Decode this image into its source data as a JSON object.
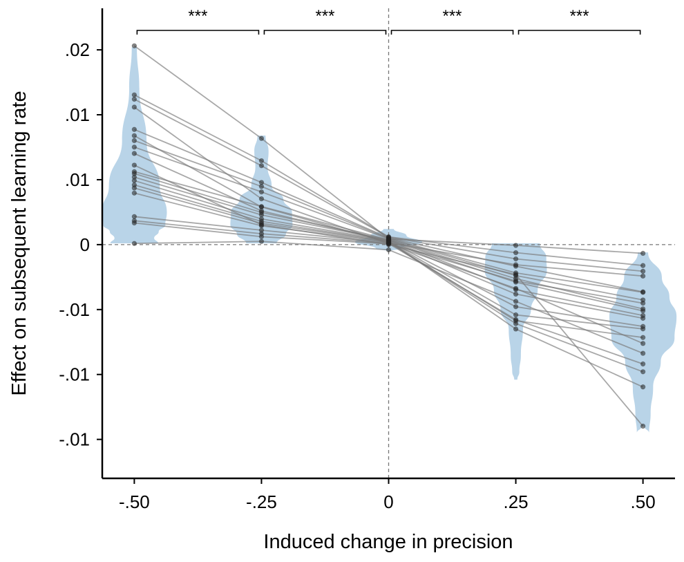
{
  "chart_data": {
    "type": "violin",
    "xlabel": "Induced change in precision",
    "ylabel": "Effect on subsequent learning rate",
    "x_tick_values": [
      -0.5,
      -0.25,
      0,
      0.25,
      0.5
    ],
    "x_tick_labels": [
      "-.50",
      "-.25",
      "0",
      ".25",
      ".50"
    ],
    "y_tick_values": [
      0.015,
      0.01,
      0.005,
      0,
      -0.005,
      -0.01,
      -0.015
    ],
    "y_tick_labels": [
      ".02",
      ".01",
      ".01",
      "0",
      "-.01",
      "-.01",
      "-.01"
    ],
    "xlim": [
      -0.563,
      0.563
    ],
    "ylim": [
      -0.018,
      0.0182
    ],
    "reference_lines": {
      "x": 0,
      "y": 0
    },
    "violin_color": "#b9d4e8",
    "line_color": "#7a7a7a",
    "point_color": "#222222",
    "groups": [
      -0.5,
      -0.25,
      0,
      0.25,
      0.5
    ],
    "violin_widths": [
      [
        [
          0.0152,
          0.005
        ],
        [
          0.012,
          0.01
        ],
        [
          0.008,
          0.024
        ],
        [
          0.0045,
          0.05
        ],
        [
          0.0025,
          0.064
        ],
        [
          0.0015,
          0.061
        ],
        [
          0.001,
          0.048
        ],
        [
          0.0005,
          0.039
        ],
        [
          0.0001,
          0.047
        ]
      ],
      [
        [
          0.0084,
          0.008
        ],
        [
          0.0072,
          0.014
        ],
        [
          0.006,
          0.012
        ],
        [
          0.0045,
          0.02
        ],
        [
          0.0035,
          0.043
        ],
        [
          0.0025,
          0.06
        ],
        [
          0.0015,
          0.061
        ],
        [
          0.0008,
          0.048
        ],
        [
          0.0001,
          0.03
        ]
      ],
      [
        [
          0.0012,
          0.01
        ],
        [
          0.0007,
          0.035
        ],
        [
          0.0002,
          0.066
        ],
        [
          -0.0003,
          0.025
        ],
        [
          -0.0005,
          0.003
        ]
      ],
      [
        [
          0.0001,
          0.047
        ],
        [
          -0.001,
          0.06
        ],
        [
          -0.002,
          0.061
        ],
        [
          -0.0035,
          0.043
        ],
        [
          -0.005,
          0.03
        ],
        [
          -0.0065,
          0.014
        ],
        [
          -0.0085,
          0.01
        ],
        [
          -0.0098,
          0.007
        ],
        [
          -0.0104,
          0.003
        ]
      ],
      [
        [
          -0.0006,
          0.01
        ],
        [
          -0.0025,
          0.037
        ],
        [
          -0.004,
          0.052
        ],
        [
          -0.0055,
          0.066
        ],
        [
          -0.0072,
          0.062
        ],
        [
          -0.009,
          0.035
        ],
        [
          -0.011,
          0.02
        ],
        [
          -0.013,
          0.015
        ],
        [
          -0.0145,
          0.012
        ],
        [
          -0.014,
          0.0025
        ]
      ]
    ],
    "subjects": [
      [
        0.01531,
        0.00818,
        0.00044,
        -6e-05,
        -0.00067
      ],
      [
        0.01153,
        0.00646,
        0.0006,
        -0.00062,
        -0.00161
      ],
      [
        0.0112,
        0.00608,
        0.00058,
        -0.0011,
        -0.00205
      ],
      [
        0.00887,
        0.00479,
        0.00052,
        -0.00166,
        -0.00364
      ],
      [
        0.00801,
        0.00448,
        0.00048,
        -0.00218,
        -0.00367
      ],
      [
        0.00751,
        0.00406,
        0.00044,
        -0.00238,
        -0.00426
      ],
      [
        0.00562,
        0.00293,
        0.00038,
        -0.00262,
        -0.00495
      ],
      [
        0.00547,
        0.00248,
        0.00036,
        -0.00289,
        -0.0051
      ],
      [
        0.0052,
        0.00229,
        0.00034,
        -0.00346,
        -0.00546
      ],
      [
        0.00493,
        0.00198,
        0.0003,
        -0.00381,
        -0.00567
      ],
      [
        0.0046,
        0.00179,
        0.00026,
        -0.00478,
        -0.0063
      ],
      [
        0.00436,
        0.00164,
        0.00022,
        -0.00541,
        -0.00649
      ],
      [
        0.00397,
        0.00145,
        0.00018,
        -0.00586,
        -0.00715
      ],
      [
        0.00216,
        0.00111,
        0.00014,
        -0.00155,
        -0.00242
      ],
      [
        0.00184,
        0.00084,
        0.0001,
        -0.0028,
        -0.00451
      ],
      [
        0.00167,
        0.00061,
        6e-05,
        -0.00337,
        -0.00761
      ],
      [
        9e-05,
        0.00025,
        -0.0004,
        -0.00437,
        -0.00837
      ],
      [
        0.01059,
        0.00353,
        8e-05,
        -0.00577,
        -0.00919
      ],
      [
        0.00839,
        0.0029,
        0.00018,
        -0.00608,
        -0.00979
      ],
      [
        0.00702,
        0.0026,
        0.00028,
        -0.0065,
        -0.01096
      ],
      [
        0.00612,
        0.00153,
        0.0,
        -0.0023,
        -0.01398
      ]
    ],
    "significance": [
      {
        "from": -0.5,
        "to": -0.25,
        "label": "***"
      },
      {
        "from": -0.25,
        "to": 0,
        "label": "***"
      },
      {
        "from": 0,
        "to": 0.25,
        "label": "***"
      },
      {
        "from": 0.25,
        "to": 0.5,
        "label": "***"
      }
    ]
  }
}
